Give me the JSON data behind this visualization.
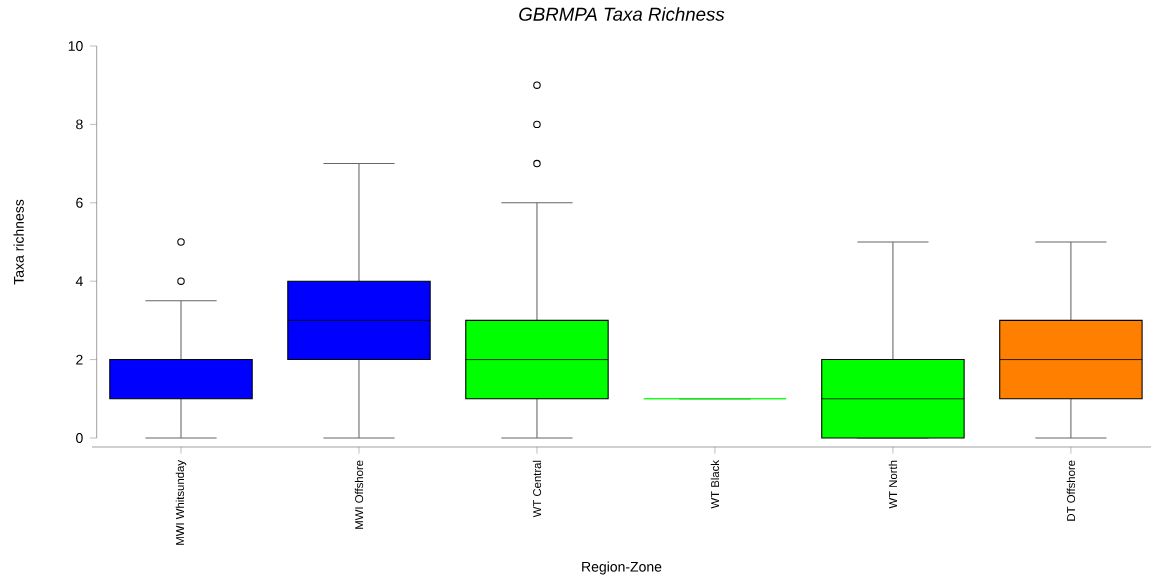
{
  "chart_data": {
    "type": "box",
    "title": "*GBRMPA Taxa Richness*",
    "xlabel": "Region-Zone",
    "ylabel": "Taxa richness",
    "categories": [
      "MWI Whitsunday",
      "MWI Offshore",
      "WT Central",
      "WT Black",
      "WT North",
      "DT Offshore"
    ],
    "boxes": [
      {
        "low": 0,
        "q1": 1,
        "median": 2,
        "q3": 2,
        "high": 3.5,
        "outliers": [
          4,
          5
        ]
      },
      {
        "low": 0,
        "q1": 2,
        "median": 3,
        "q3": 4,
        "high": 7
      },
      {
        "low": 0,
        "q1": 1,
        "median": 2,
        "q3": 3,
        "high": 6,
        "outliers": [
          7,
          8,
          9
        ]
      },
      {
        "low": 1,
        "q1": 1,
        "median": 1,
        "q3": 1,
        "high": 1
      },
      {
        "low": 0,
        "q1": 0,
        "median": 1,
        "q3": 2,
        "high": 5
      },
      {
        "low": 0,
        "q1": 1,
        "median": 2,
        "q3": 3,
        "high": 5
      }
    ],
    "colors": [
      "#0000ff",
      "#0000ff",
      "#00ff00",
      "#00ff00",
      "#00ff00",
      "#ff8000"
    ],
    "ylim": [
      0,
      10
    ],
    "yticks": [
      0,
      2,
      4,
      6,
      8,
      10
    ]
  }
}
